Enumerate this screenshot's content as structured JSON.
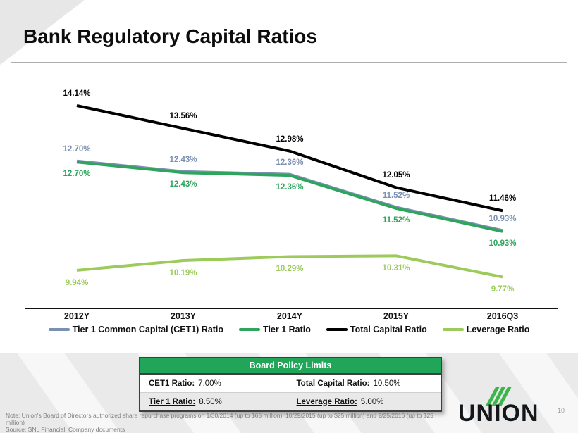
{
  "slide": {
    "title": "Bank Regulatory Capital Ratios",
    "page_number": "10",
    "logo_text": "UNION",
    "footnote_line1": "Note: Union's Board of Directors authorized share repurchase programs on 1/30/2014 (up to $65 million), 10/29/2015 (up to $25 million) and 2/25/2016 (up to $25 million)",
    "footnote_line2": "Source: SNL Financial, Company documents"
  },
  "chart_data": {
    "type": "line",
    "categories": [
      "2012Y",
      "2013Y",
      "2014Y",
      "2015Y",
      "2016Q3"
    ],
    "series": [
      {
        "name": "Tier 1 Common Capital (CET1) Ratio",
        "color": "#7B8FB2",
        "values": [
          12.7,
          12.43,
          12.36,
          11.52,
          10.93
        ]
      },
      {
        "name": "Tier 1 Ratio",
        "color": "#2EA45C",
        "values": [
          12.7,
          12.43,
          12.36,
          11.52,
          10.93
        ]
      },
      {
        "name": "Total Capital Ratio",
        "color": "#000000",
        "values": [
          14.14,
          13.56,
          12.98,
          12.05,
          11.46
        ]
      },
      {
        "name": "Leverage Ratio",
        "color": "#9CCB5C",
        "values": [
          9.94,
          10.19,
          10.29,
          10.31,
          9.77
        ]
      }
    ],
    "value_suffix": "%",
    "data_labels": true,
    "grid": false,
    "y_axis_visible": false,
    "ylim": [
      9.5,
      14.6
    ],
    "legend_position": "bottom"
  },
  "policy_table": {
    "title": "Board Policy Limits",
    "header_color": "#21A558",
    "rows": [
      [
        {
          "label": "CET1  Ratio:",
          "value": "7.00%"
        },
        {
          "label": "Total Capital Ratio:",
          "value": "10.50%"
        }
      ],
      [
        {
          "label": "Tier 1 Ratio:",
          "value": "8.50%"
        },
        {
          "label": "Leverage Ratio:",
          "value": "5.00%"
        }
      ]
    ]
  }
}
